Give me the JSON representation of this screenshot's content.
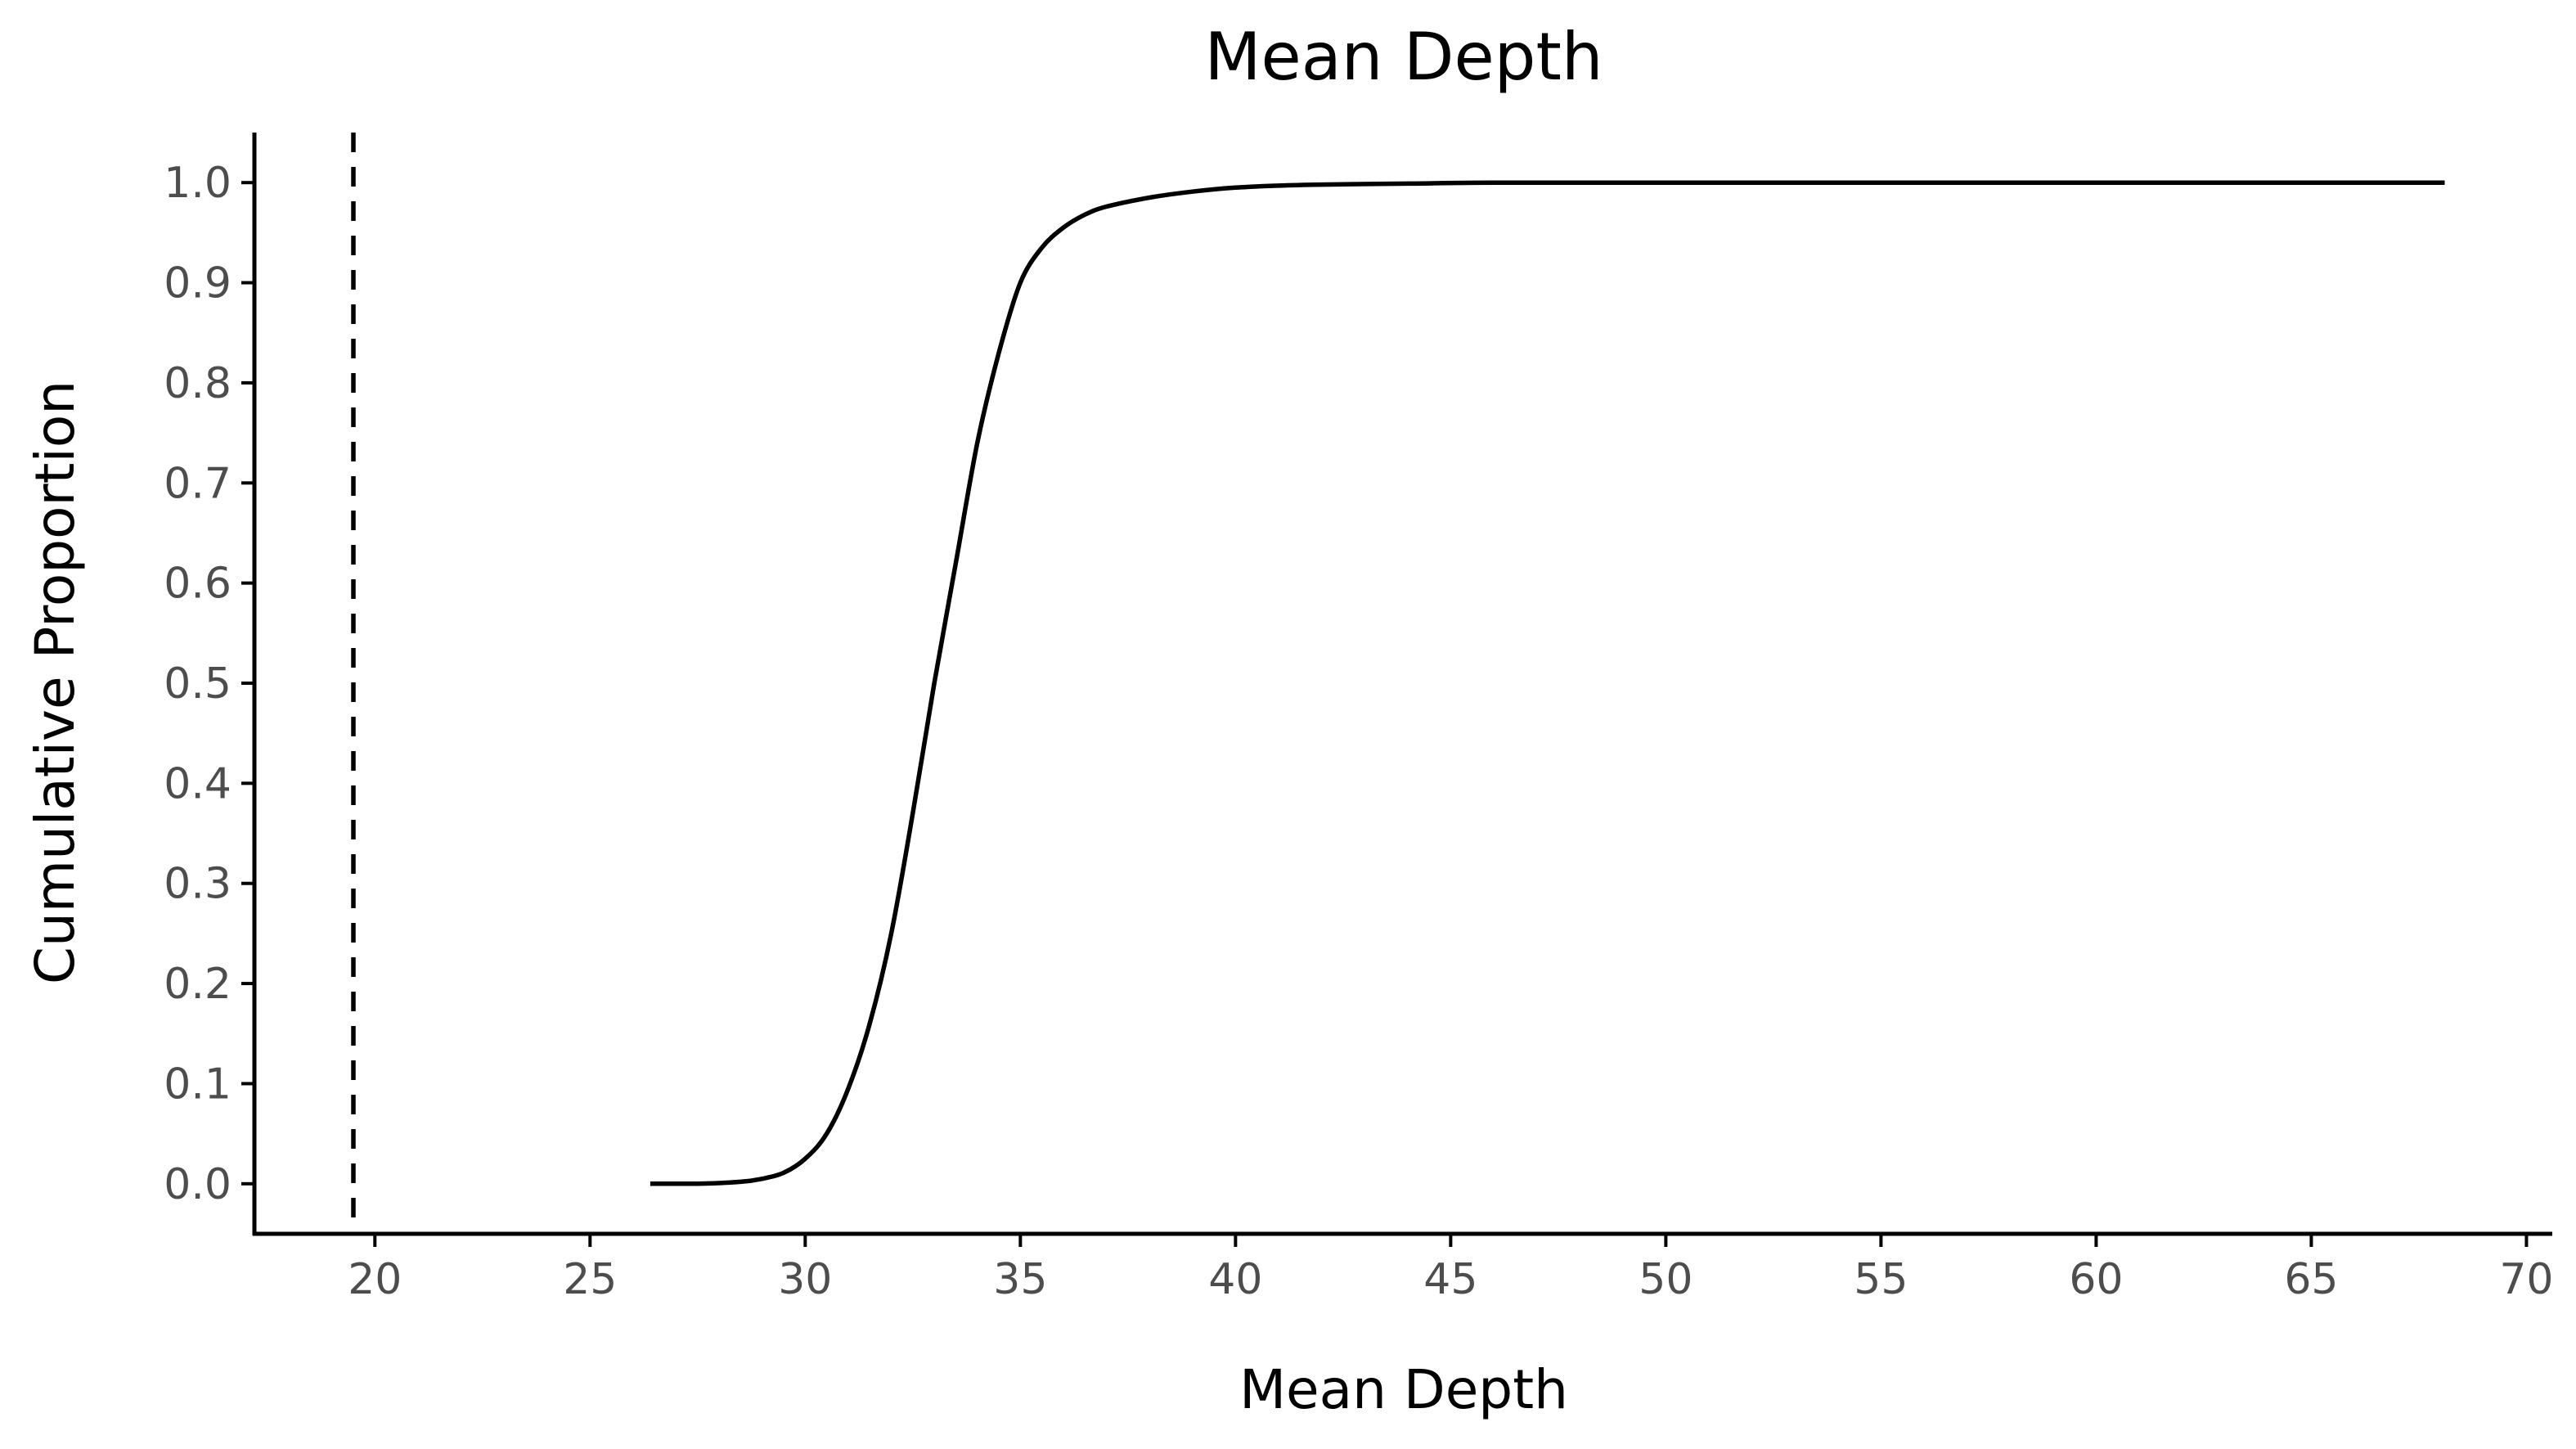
{
  "chart_data": {
    "type": "line",
    "title": "Mean Depth",
    "xlabel": "Mean Depth",
    "ylabel": "Cumulative Proportion",
    "xlim": [
      17.2,
      70.6
    ],
    "ylim": [
      -0.05,
      1.05
    ],
    "x_ticks": [
      "20",
      "25",
      "30",
      "35",
      "40",
      "45",
      "50",
      "55",
      "60",
      "65",
      "70"
    ],
    "y_ticks": [
      "0.0",
      "0.1",
      "0.2",
      "0.3",
      "0.4",
      "0.5",
      "0.6",
      "0.7",
      "0.8",
      "0.9",
      "1.0"
    ],
    "grid": false,
    "legend": "none",
    "colors": {
      "line": "#000000",
      "tick_text": "#4d4d4d"
    },
    "reference_line": {
      "orientation": "vertical",
      "style": "dashed",
      "x": 19.5
    },
    "series": [
      {
        "x": [
          26.4,
          27.5,
          28.5,
          29.0,
          29.5,
          30.0,
          30.5,
          31.0,
          31.5,
          32.0,
          32.5,
          33.0,
          33.5,
          34.0,
          34.5,
          35.0,
          35.5,
          36.0,
          36.5,
          37.0,
          38.0,
          39.0,
          40.0,
          41.0,
          42.0,
          44.0,
          46.0,
          50.0,
          55.0,
          60.0,
          65.0,
          68.1
        ],
        "y": [
          0.0,
          0.0,
          0.002,
          0.005,
          0.011,
          0.025,
          0.05,
          0.095,
          0.16,
          0.25,
          0.37,
          0.5,
          0.62,
          0.74,
          0.83,
          0.9,
          0.935,
          0.955,
          0.968,
          0.976,
          0.985,
          0.991,
          0.995,
          0.997,
          0.998,
          0.999,
          1.0,
          1.0,
          1.0,
          1.0,
          1.0,
          1.0
        ]
      }
    ]
  }
}
